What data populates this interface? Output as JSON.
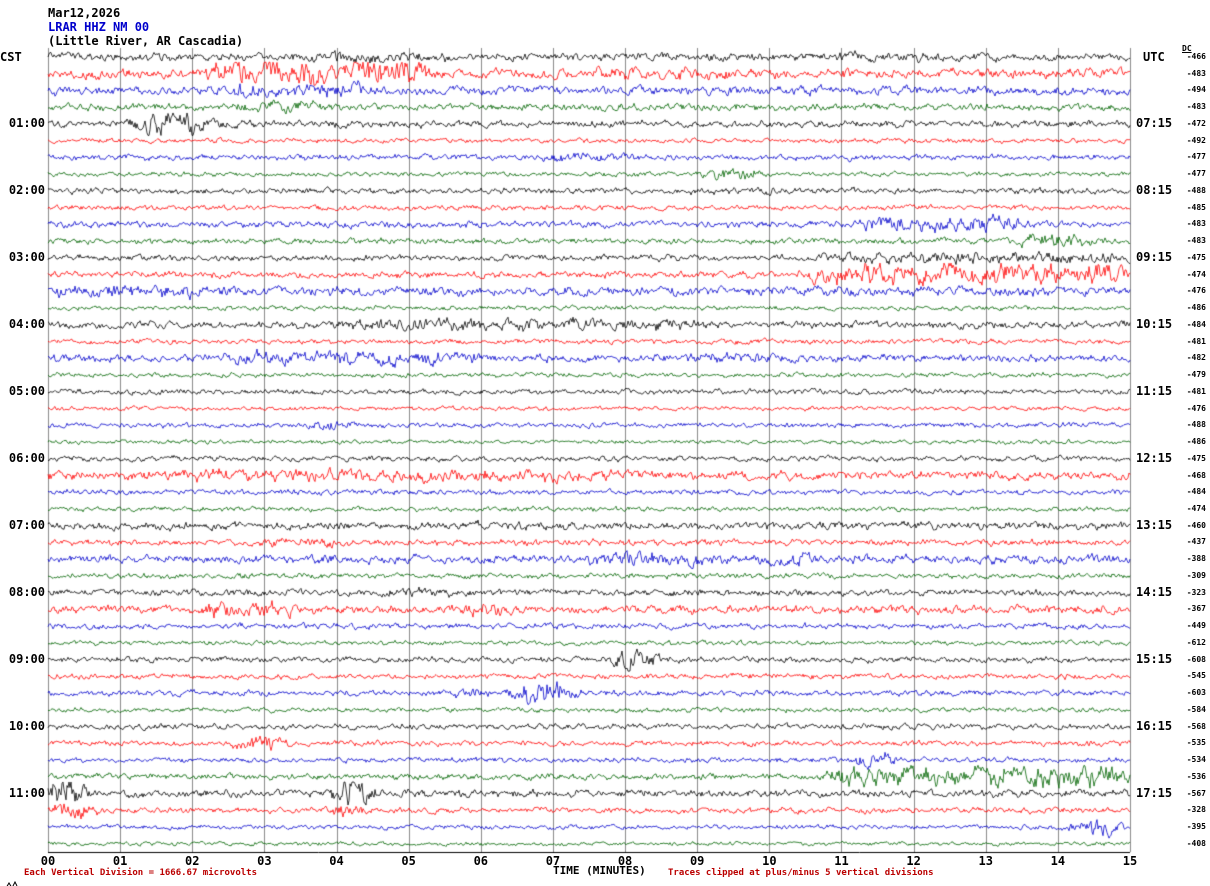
{
  "header": {
    "date": "Mar12,2026",
    "station": "LRAR HHZ NM 00",
    "location": "(Little River, AR Cascadia)",
    "left_tz": "CST",
    "right_tz": "UTC",
    "dc_label": "DC"
  },
  "footer": {
    "left": "Each Vertical Division = 1666.67 microvolts",
    "center": "TIME (MINUTES)",
    "right": "Traces clipped at plus/minus 5 vertical divisions"
  },
  "x_axis": {
    "title": "TIME (MINUTES)",
    "labels": [
      "00",
      "01",
      "02",
      "03",
      "04",
      "05",
      "06",
      "07",
      "08",
      "09",
      "10",
      "11",
      "12",
      "13",
      "14",
      "15"
    ],
    "range_minutes": [
      0,
      15
    ]
  },
  "colors": {
    "black": "#000000",
    "red": "#ff0000",
    "blue": "#0000cc",
    "green": "#006400",
    "grid": "#8a8a8a",
    "axis": "#000000",
    "footer_red": "#bb0000",
    "station_blue": "#0000cc"
  },
  "chart_data": {
    "type": "line",
    "description": "Helicorder seismogram: 48 consecutive 15-minute traces (4 per hour), colors cycling black/red/blue/green, CST hour labels on the left, UTC labels on the right, per-trace DC offset values (microvolts) on the far right. Bursts mark visible seismic noise events [startMin,endMin,relativeAmplitude].",
    "grid": true,
    "row_spacing_px": 16.74,
    "left_hour_labels": [
      {
        "row": 4,
        "label": "01:00"
      },
      {
        "row": 8,
        "label": "02:00"
      },
      {
        "row": 12,
        "label": "03:00"
      },
      {
        "row": 16,
        "label": "04:00"
      },
      {
        "row": 20,
        "label": "05:00"
      },
      {
        "row": 24,
        "label": "06:00"
      },
      {
        "row": 28,
        "label": "07:00"
      },
      {
        "row": 32,
        "label": "08:00"
      },
      {
        "row": 36,
        "label": "09:00"
      },
      {
        "row": 40,
        "label": "10:00"
      },
      {
        "row": 44,
        "label": "11:00"
      }
    ],
    "right_utc_labels": [
      {
        "row": 4,
        "label": "07:15"
      },
      {
        "row": 8,
        "label": "08:15"
      },
      {
        "row": 12,
        "label": "09:15"
      },
      {
        "row": 16,
        "label": "10:15"
      },
      {
        "row": 20,
        "label": "11:15"
      },
      {
        "row": 24,
        "label": "12:15"
      },
      {
        "row": 28,
        "label": "13:15"
      },
      {
        "row": 32,
        "label": "14:15"
      },
      {
        "row": 36,
        "label": "15:15"
      },
      {
        "row": 40,
        "label": "16:15"
      },
      {
        "row": 44,
        "label": "17:15"
      }
    ],
    "rows": [
      {
        "color": "black",
        "dc": -466,
        "amp": 2.0,
        "bursts": [
          [
            3.5,
            5.5,
            1.6
          ],
          [
            11.0,
            12.5,
            1.3
          ]
        ]
      },
      {
        "color": "red",
        "dc": -483,
        "amp": 2.4,
        "bursts": [
          [
            2.2,
            5.3,
            2.8
          ],
          [
            7.5,
            9.5,
            1.4
          ]
        ]
      },
      {
        "color": "blue",
        "dc": -494,
        "amp": 2.2,
        "bursts": [
          [
            2.4,
            4.6,
            1.8
          ]
        ]
      },
      {
        "color": "green",
        "dc": -483,
        "amp": 1.8,
        "bursts": [
          [
            2.6,
            3.8,
            1.8
          ]
        ]
      },
      {
        "color": "black",
        "dc": -472,
        "amp": 1.8,
        "bursts": [
          [
            1.2,
            2.3,
            3.2
          ]
        ]
      },
      {
        "color": "red",
        "dc": -492,
        "amp": 1.2,
        "bursts": []
      },
      {
        "color": "blue",
        "dc": -477,
        "amp": 1.5,
        "bursts": [
          [
            6.8,
            8.2,
            1.6
          ]
        ]
      },
      {
        "color": "green",
        "dc": -477,
        "amp": 1.2,
        "bursts": [
          [
            9.1,
            9.9,
            2.6
          ]
        ]
      },
      {
        "color": "black",
        "dc": -488,
        "amp": 1.5,
        "bursts": [
          [
            8.8,
            10.5,
            1.4
          ]
        ]
      },
      {
        "color": "red",
        "dc": -485,
        "amp": 1.3,
        "bursts": []
      },
      {
        "color": "blue",
        "dc": -483,
        "amp": 1.7,
        "bursts": [
          [
            11.3,
            13.6,
            2.4
          ]
        ]
      },
      {
        "color": "green",
        "dc": -483,
        "amp": 1.5,
        "bursts": [
          [
            13.4,
            14.6,
            2.4
          ]
        ]
      },
      {
        "color": "black",
        "dc": -475,
        "amp": 1.6,
        "bursts": [
          [
            10.8,
            15,
            1.8
          ]
        ]
      },
      {
        "color": "red",
        "dc": -474,
        "amp": 1.7,
        "bursts": [
          [
            10.5,
            15,
            3.2
          ]
        ]
      },
      {
        "color": "blue",
        "dc": -476,
        "amp": 2.4,
        "bursts": [
          [
            0,
            2.2,
            1.5
          ]
        ]
      },
      {
        "color": "green",
        "dc": -486,
        "amp": 1.2,
        "bursts": []
      },
      {
        "color": "black",
        "dc": -484,
        "amp": 1.9,
        "bursts": [
          [
            4,
            9,
            1.8
          ]
        ]
      },
      {
        "color": "red",
        "dc": -481,
        "amp": 1.3,
        "bursts": []
      },
      {
        "color": "blue",
        "dc": -482,
        "amp": 1.9,
        "bursts": [
          [
            2.5,
            6,
            1.9
          ],
          [
            8.8,
            10.2,
            1.5
          ]
        ]
      },
      {
        "color": "green",
        "dc": -479,
        "amp": 1.2,
        "bursts": []
      },
      {
        "color": "black",
        "dc": -481,
        "amp": 1.4,
        "bursts": []
      },
      {
        "color": "red",
        "dc": -476,
        "amp": 1.1,
        "bursts": []
      },
      {
        "color": "blue",
        "dc": -488,
        "amp": 1.3,
        "bursts": [
          [
            3.4,
            4.3,
            1.9
          ]
        ]
      },
      {
        "color": "green",
        "dc": -486,
        "amp": 1.1,
        "bursts": []
      },
      {
        "color": "black",
        "dc": -475,
        "amp": 1.4,
        "bursts": []
      },
      {
        "color": "red",
        "dc": -468,
        "amp": 2.2,
        "bursts": [
          [
            1.8,
            8.2,
            1.5
          ]
        ]
      },
      {
        "color": "blue",
        "dc": -484,
        "amp": 1.4,
        "bursts": []
      },
      {
        "color": "green",
        "dc": -474,
        "amp": 1.2,
        "bursts": []
      },
      {
        "color": "black",
        "dc": -460,
        "amp": 2.1,
        "bursts": [
          [
            0,
            15,
            1.0
          ]
        ]
      },
      {
        "color": "red",
        "dc": -437,
        "amp": 1.6,
        "bursts": [
          [
            3,
            4.2,
            1.5
          ]
        ]
      },
      {
        "color": "blue",
        "dc": -388,
        "amp": 2.2,
        "bursts": [
          [
            7.4,
            9.2,
            1.7
          ],
          [
            9.8,
            11,
            1.4
          ]
        ]
      },
      {
        "color": "green",
        "dc": -309,
        "amp": 1.4,
        "bursts": []
      },
      {
        "color": "black",
        "dc": -323,
        "amp": 1.7,
        "bursts": [
          [
            4.4,
            5.6,
            1.5
          ]
        ]
      },
      {
        "color": "red",
        "dc": -367,
        "amp": 2.1,
        "bursts": [
          [
            2.1,
            3.6,
            2.0
          ],
          [
            5.7,
            6.4,
            1.8
          ]
        ]
      },
      {
        "color": "blue",
        "dc": -449,
        "amp": 1.5,
        "bursts": []
      },
      {
        "color": "green",
        "dc": -612,
        "amp": 1.2,
        "bursts": []
      },
      {
        "color": "black",
        "dc": -608,
        "amp": 1.5,
        "bursts": [
          [
            7.8,
            8.5,
            3.8
          ]
        ]
      },
      {
        "color": "red",
        "dc": -545,
        "amp": 1.4,
        "bursts": []
      },
      {
        "color": "blue",
        "dc": -603,
        "amp": 1.5,
        "bursts": [
          [
            5.5,
            6.1,
            2.0
          ],
          [
            6.4,
            7.3,
            4.5
          ]
        ]
      },
      {
        "color": "green",
        "dc": -584,
        "amp": 1.2,
        "bursts": []
      },
      {
        "color": "black",
        "dc": -568,
        "amp": 1.5,
        "bursts": []
      },
      {
        "color": "red",
        "dc": -535,
        "amp": 1.4,
        "bursts": [
          [
            2.6,
            3.3,
            3.2
          ]
        ]
      },
      {
        "color": "blue",
        "dc": -534,
        "amp": 1.3,
        "bursts": [
          [
            11.2,
            11.7,
            3.6
          ]
        ]
      },
      {
        "color": "green",
        "dc": -536,
        "amp": 1.6,
        "bursts": [
          [
            10.8,
            15,
            3.4
          ]
        ]
      },
      {
        "color": "black",
        "dc": -567,
        "amp": 1.9,
        "bursts": [
          [
            0,
            0.5,
            4.5
          ],
          [
            3.9,
            4.5,
            4.2
          ]
        ]
      },
      {
        "color": "red",
        "dc": -328,
        "amp": 1.5,
        "bursts": [
          [
            0,
            0.6,
            3.5
          ],
          [
            3.9,
            4.4,
            2.6
          ]
        ]
      },
      {
        "color": "blue",
        "dc": -395,
        "amp": 1.2,
        "bursts": [
          [
            14.2,
            14.9,
            4.2
          ]
        ]
      },
      {
        "color": "green",
        "dc": -408,
        "amp": 1.0,
        "bursts": []
      }
    ]
  }
}
